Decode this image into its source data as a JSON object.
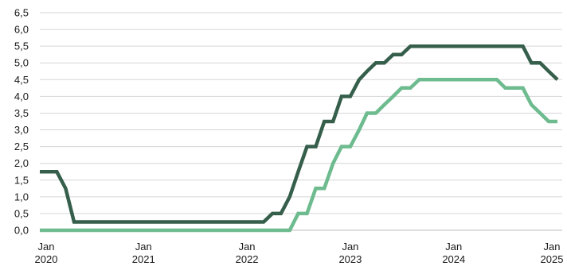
{
  "chart_data": {
    "type": "line",
    "title": "",
    "xlabel": "",
    "ylabel": "",
    "ylim": [
      0,
      6.5
    ],
    "xlim": [
      "2020-01-01",
      "2025-01-01"
    ],
    "grid": true,
    "legend": "none",
    "y_ticks": [
      "0,0",
      "0,5",
      "1,0",
      "1,5",
      "2,0",
      "2,5",
      "3,0",
      "3,5",
      "4,0",
      "4,5",
      "5,0",
      "5,5",
      "6,0",
      "6,5"
    ],
    "y_tick_values": [
      0,
      0.5,
      1,
      1.5,
      2,
      2.5,
      3,
      3.5,
      4,
      4.5,
      5,
      5.5,
      6,
      6.5
    ],
    "x_ticks": [
      {
        "date": "2020-01-01",
        "line1": "Jan",
        "line2": "2020"
      },
      {
        "date": "2021-01-01",
        "line1": "Jan",
        "line2": "2021"
      },
      {
        "date": "2022-01-01",
        "line1": "Jan",
        "line2": "2022"
      },
      {
        "date": "2023-01-01",
        "line1": "Jan",
        "line2": "2023"
      },
      {
        "date": "2024-01-01",
        "line1": "Jan",
        "line2": "2024"
      },
      {
        "date": "2025-01-01",
        "line1": "Jan",
        "line2": "2025"
      }
    ],
    "series": [
      {
        "color": "#355e4b",
        "points": [
          [
            "2020-01-01",
            1.75
          ],
          [
            "2020-03-01",
            1.75
          ],
          [
            "2020-04-01",
            1.25
          ],
          [
            "2020-05-01",
            0.25
          ],
          [
            "2022-03-01",
            0.25
          ],
          [
            "2022-04-01",
            0.5
          ],
          [
            "2022-05-01",
            0.5
          ],
          [
            "2022-06-01",
            1.0
          ],
          [
            "2022-07-01",
            1.75
          ],
          [
            "2022-08-01",
            2.5
          ],
          [
            "2022-09-01",
            2.5
          ],
          [
            "2022-10-01",
            3.25
          ],
          [
            "2022-11-01",
            3.25
          ],
          [
            "2022-12-01",
            4.0
          ],
          [
            "2023-01-01",
            4.0
          ],
          [
            "2023-02-01",
            4.5
          ],
          [
            "2023-03-01",
            4.75
          ],
          [
            "2023-04-01",
            5.0
          ],
          [
            "2023-05-01",
            5.0
          ],
          [
            "2023-06-01",
            5.25
          ],
          [
            "2023-07-01",
            5.25
          ],
          [
            "2023-08-01",
            5.5
          ],
          [
            "2024-09-01",
            5.5
          ],
          [
            "2024-10-01",
            5.0
          ],
          [
            "2024-11-01",
            5.0
          ],
          [
            "2024-12-01",
            4.75
          ],
          [
            "2025-01-01",
            4.5
          ]
        ]
      },
      {
        "color": "#6dbb8e",
        "points": [
          [
            "2020-01-01",
            0.0
          ],
          [
            "2022-04-01",
            0.0
          ],
          [
            "2022-05-01",
            0.0
          ],
          [
            "2022-06-01",
            0.0
          ],
          [
            "2022-07-01",
            0.5
          ],
          [
            "2022-08-01",
            0.5
          ],
          [
            "2022-09-01",
            1.25
          ],
          [
            "2022-10-01",
            1.25
          ],
          [
            "2022-11-01",
            2.0
          ],
          [
            "2022-12-01",
            2.5
          ],
          [
            "2023-01-01",
            2.5
          ],
          [
            "2023-02-01",
            3.0
          ],
          [
            "2023-03-01",
            3.5
          ],
          [
            "2023-04-01",
            3.5
          ],
          [
            "2023-05-01",
            3.75
          ],
          [
            "2023-06-01",
            4.0
          ],
          [
            "2023-07-01",
            4.25
          ],
          [
            "2023-08-01",
            4.25
          ],
          [
            "2023-09-01",
            4.5
          ],
          [
            "2024-06-01",
            4.5
          ],
          [
            "2024-07-01",
            4.25
          ],
          [
            "2024-08-01",
            4.25
          ],
          [
            "2024-09-01",
            4.25
          ],
          [
            "2024-10-01",
            3.75
          ],
          [
            "2024-11-01",
            3.5
          ],
          [
            "2024-12-01",
            3.25
          ],
          [
            "2025-01-01",
            3.25
          ]
        ]
      }
    ]
  }
}
